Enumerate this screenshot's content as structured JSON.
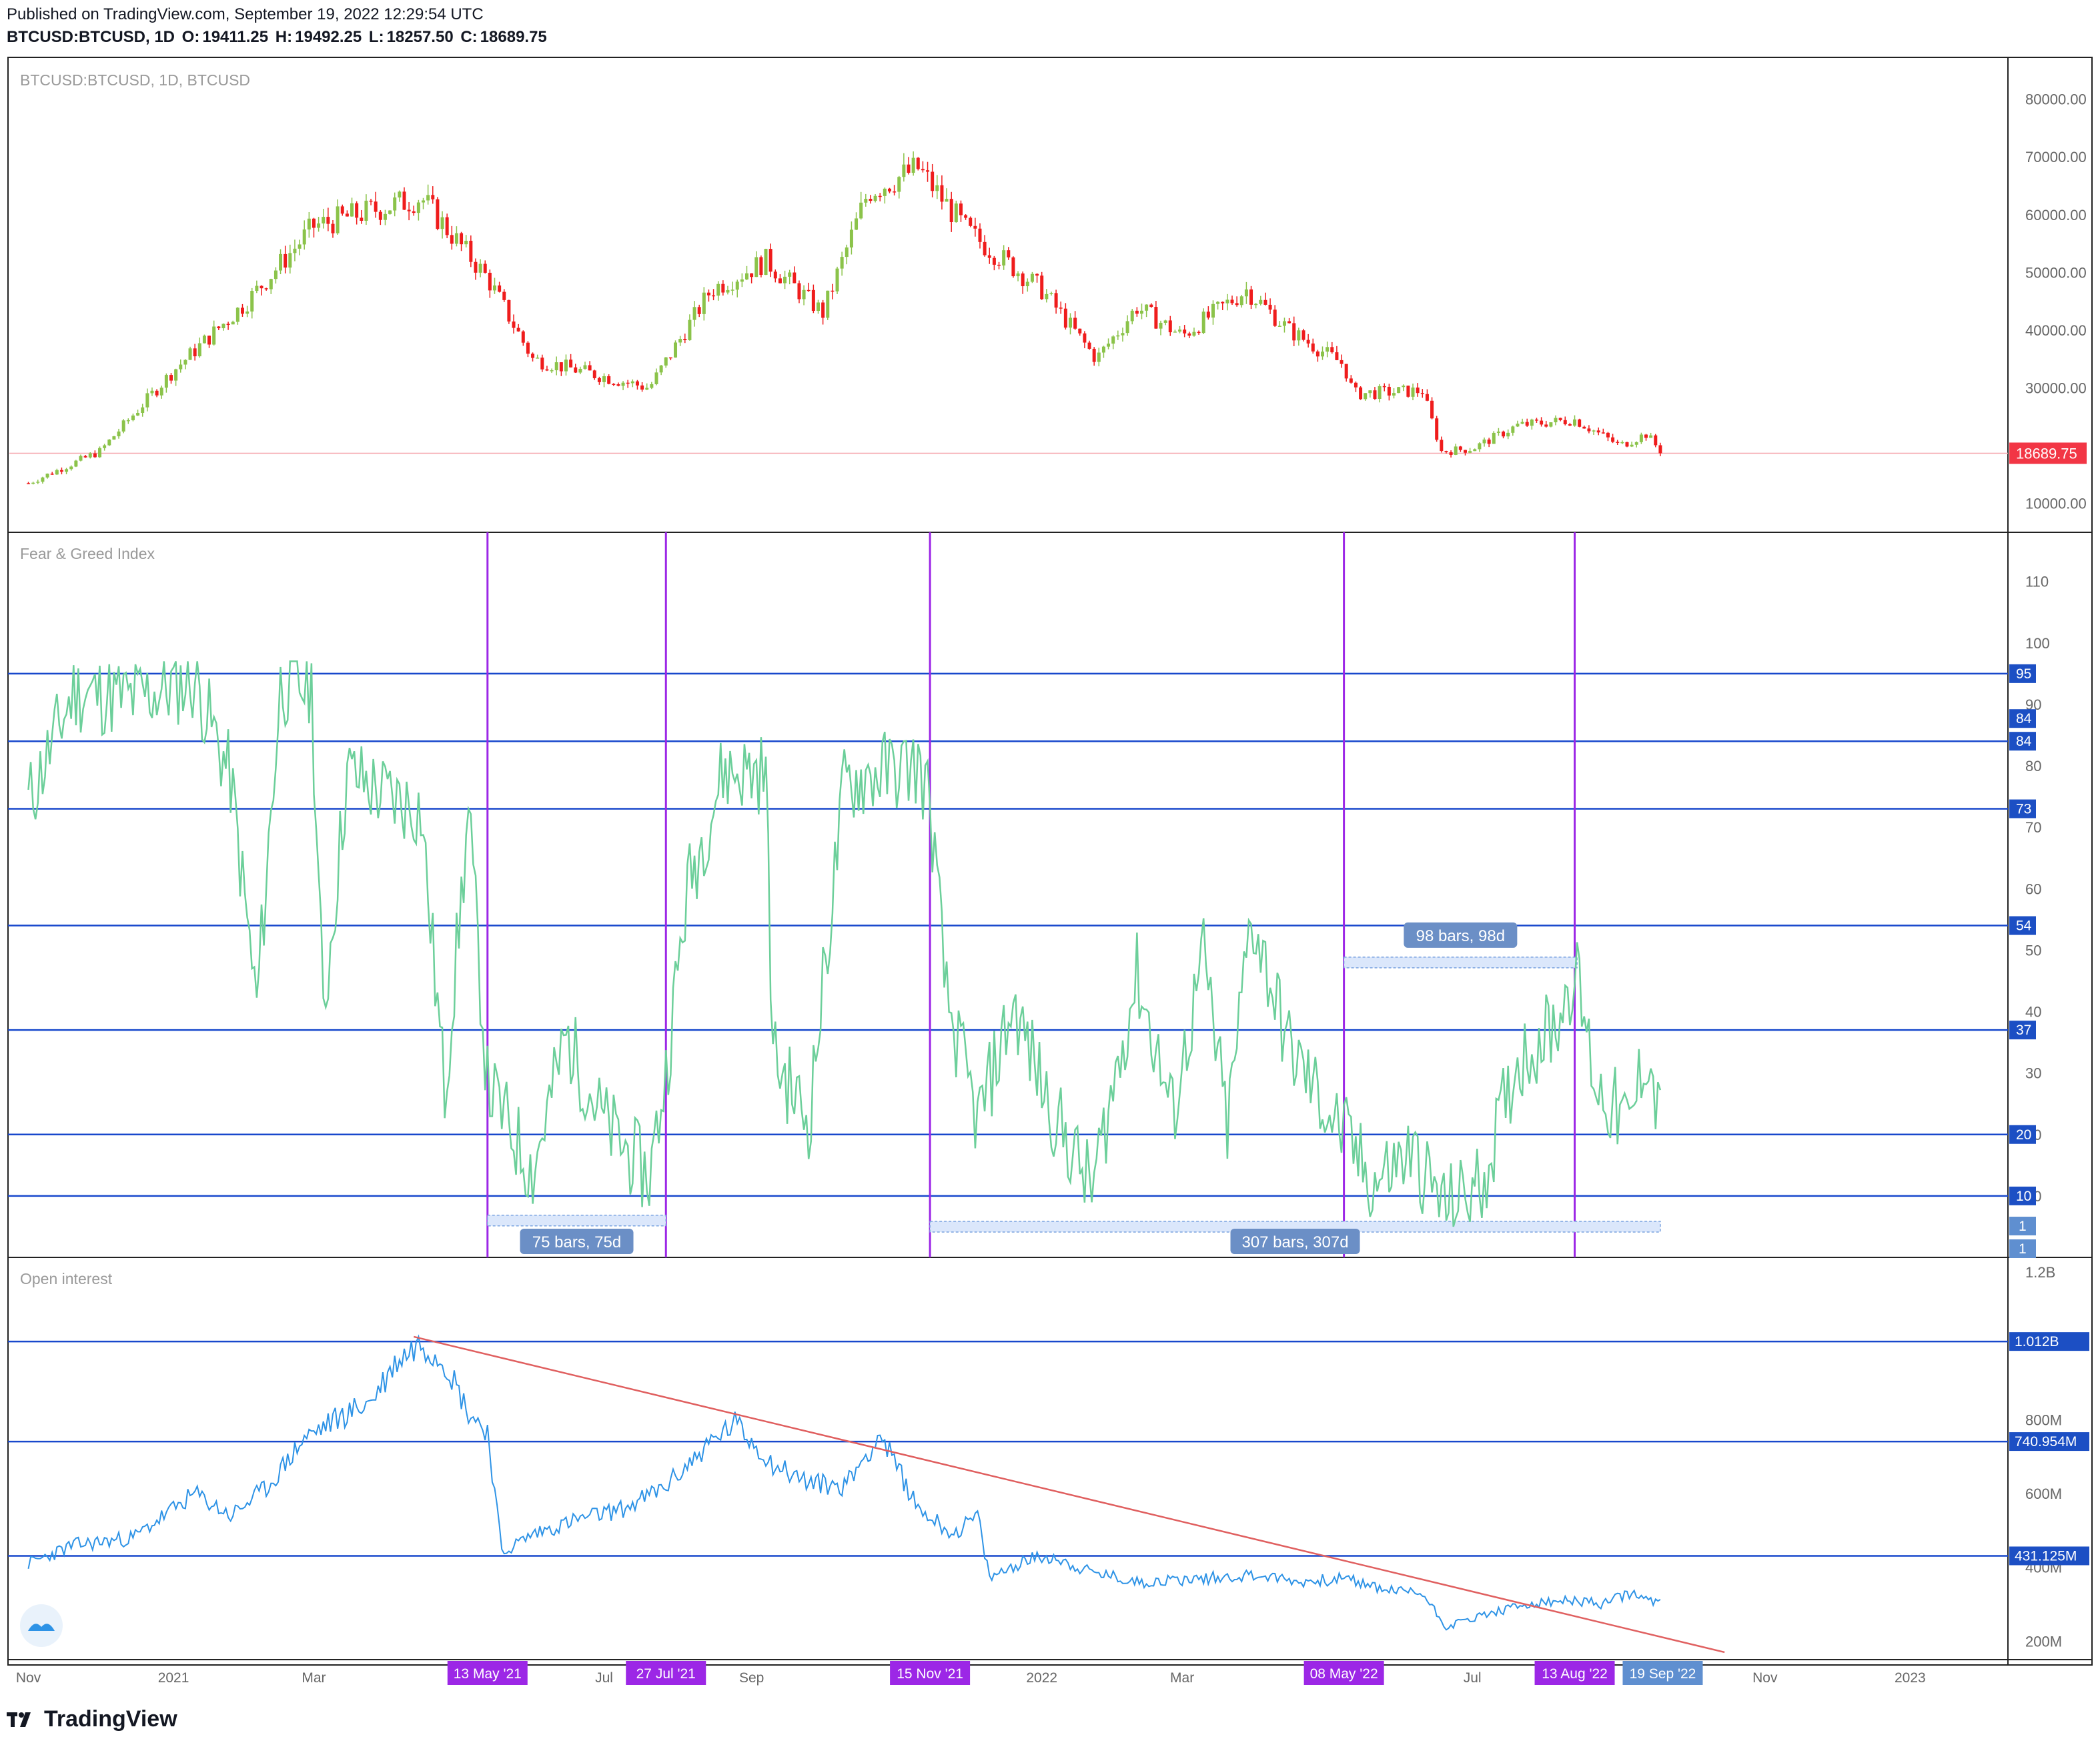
{
  "header": {
    "published": "Published on TradingView.com, September 19, 2022 12:29:54 UTC",
    "symbol": "BTCUSD:BTCUSD, 1D",
    "o_label": "O:",
    "o_value": "19411.25",
    "h_label": "H:",
    "h_value": "19492.25",
    "l_label": "L:",
    "l_value": "18257.50",
    "c_label": "C:",
    "c_value": "18689.75"
  },
  "footer": {
    "brand": "TradingView"
  },
  "colors": {
    "up": "#53b987",
    "down": "#eb4d5c",
    "candle_up": "#8bc34a",
    "candle_down": "#ef1c1c",
    "hline": "#1848cc",
    "vline": "#9c27e6",
    "fg_line": "#6ccf9a",
    "oi_line": "#2e93e6",
    "trend": "#e06060",
    "price_tag": "#f23645"
  },
  "chart_data": [
    {
      "type": "candlestick",
      "pane_title": "BTCUSD:BTCUSD, 1D, BTCUSD",
      "y_ticks": [
        "80000.00",
        "70000.00",
        "60000.00",
        "50000.00",
        "40000.00",
        "30000.00",
        "10000.00"
      ],
      "ylim": [
        5000,
        87000
      ],
      "last_price_label": "18689.75",
      "last_price": 18689.75,
      "monthly_closes": [
        {
          "date": "2020-11-01",
          "v": 13500
        },
        {
          "date": "2020-12-01",
          "v": 19000
        },
        {
          "date": "2021-01-01",
          "v": 33000
        },
        {
          "date": "2021-02-01",
          "v": 45000
        },
        {
          "date": "2021-03-01",
          "v": 58000
        },
        {
          "date": "2021-04-15",
          "v": 63000
        },
        {
          "date": "2021-05-13",
          "v": 49000
        },
        {
          "date": "2021-06-01",
          "v": 35000
        },
        {
          "date": "2021-07-20",
          "v": 30000
        },
        {
          "date": "2021-08-15",
          "v": 47000
        },
        {
          "date": "2021-09-07",
          "v": 52000
        },
        {
          "date": "2021-10-01",
          "v": 43000
        },
        {
          "date": "2021-10-20",
          "v": 64000
        },
        {
          "date": "2021-11-10",
          "v": 68000
        },
        {
          "date": "2021-12-01",
          "v": 57000
        },
        {
          "date": "2022-01-01",
          "v": 47000
        },
        {
          "date": "2022-01-24",
          "v": 35000
        },
        {
          "date": "2022-02-10",
          "v": 44000
        },
        {
          "date": "2022-03-01",
          "v": 39000
        },
        {
          "date": "2022-03-28",
          "v": 47000
        },
        {
          "date": "2022-04-15",
          "v": 40000
        },
        {
          "date": "2022-05-08",
          "v": 34000
        },
        {
          "date": "2022-05-12",
          "v": 29000
        },
        {
          "date": "2022-06-10",
          "v": 29500
        },
        {
          "date": "2022-06-18",
          "v": 19000
        },
        {
          "date": "2022-07-01",
          "v": 19500
        },
        {
          "date": "2022-07-20",
          "v": 23500
        },
        {
          "date": "2022-08-13",
          "v": 24500
        },
        {
          "date": "2022-09-01",
          "v": 20000
        },
        {
          "date": "2022-09-12",
          "v": 22000
        },
        {
          "date": "2022-09-19",
          "v": 18690
        }
      ]
    },
    {
      "type": "line",
      "pane_title": "Fear & Greed Index",
      "y_ticks": [
        "110",
        "100",
        "90",
        "80",
        "70",
        "60",
        "50",
        "40",
        "30",
        "20",
        "10"
      ],
      "ylim": [
        0,
        118
      ],
      "hlines": [
        95,
        84,
        84,
        73,
        54,
        37,
        20,
        10
      ],
      "hline_labels": [
        "95",
        "84",
        "84",
        "73",
        "54",
        "37",
        "20",
        "10"
      ],
      "extra_tags": [
        "1",
        "1"
      ],
      "vlines": [
        "2021-05-13",
        "2021-07-27",
        "2021-11-15",
        "2022-05-08",
        "2022-08-13"
      ],
      "ranges": [
        {
          "label": "75 bars, 75d",
          "from": "2021-05-13",
          "to": "2021-07-27",
          "level": 6
        },
        {
          "label": "98 bars, 98d",
          "from": "2022-05-08",
          "to": "2022-08-14",
          "level": 48
        },
        {
          "label": "307 bars, 307d",
          "from": "2021-11-15",
          "to": "2022-09-18",
          "level": 5
        }
      ],
      "points": [
        {
          "date": "2020-11-01",
          "v": 74
        },
        {
          "date": "2020-11-20",
          "v": 92
        },
        {
          "date": "2020-12-15",
          "v": 91
        },
        {
          "date": "2021-01-10",
          "v": 94
        },
        {
          "date": "2021-01-25",
          "v": 78
        },
        {
          "date": "2021-02-05",
          "v": 41
        },
        {
          "date": "2021-02-15",
          "v": 93
        },
        {
          "date": "2021-02-28",
          "v": 93
        },
        {
          "date": "2021-03-05",
          "v": 39
        },
        {
          "date": "2021-03-15",
          "v": 79
        },
        {
          "date": "2021-04-01",
          "v": 75
        },
        {
          "date": "2021-04-15",
          "v": 73
        },
        {
          "date": "2021-04-25",
          "v": 27
        },
        {
          "date": "2021-05-05",
          "v": 72
        },
        {
          "date": "2021-05-13",
          "v": 28
        },
        {
          "date": "2021-06-01",
          "v": 14
        },
        {
          "date": "2021-06-15",
          "v": 36
        },
        {
          "date": "2021-07-01",
          "v": 22
        },
        {
          "date": "2021-07-20",
          "v": 13
        },
        {
          "date": "2021-07-27",
          "v": 30
        },
        {
          "date": "2021-08-05",
          "v": 60
        },
        {
          "date": "2021-08-20",
          "v": 79
        },
        {
          "date": "2021-09-07",
          "v": 79
        },
        {
          "date": "2021-09-10",
          "v": 33
        },
        {
          "date": "2021-09-25",
          "v": 22
        },
        {
          "date": "2021-10-10",
          "v": 77
        },
        {
          "date": "2021-10-25",
          "v": 79
        },
        {
          "date": "2021-11-10",
          "v": 80
        },
        {
          "date": "2021-11-15",
          "v": 74
        },
        {
          "date": "2021-11-22",
          "v": 42
        },
        {
          "date": "2021-12-05",
          "v": 22
        },
        {
          "date": "2021-12-20",
          "v": 41
        },
        {
          "date": "2022-01-05",
          "v": 24
        },
        {
          "date": "2022-01-22",
          "v": 11
        },
        {
          "date": "2022-02-10",
          "v": 46
        },
        {
          "date": "2022-02-25",
          "v": 23
        },
        {
          "date": "2022-03-10",
          "v": 49
        },
        {
          "date": "2022-03-20",
          "v": 21
        },
        {
          "date": "2022-03-30",
          "v": 56
        },
        {
          "date": "2022-04-15",
          "v": 34
        },
        {
          "date": "2022-05-01",
          "v": 24
        },
        {
          "date": "2022-05-08",
          "v": 20
        },
        {
          "date": "2022-05-20",
          "v": 12
        },
        {
          "date": "2022-06-05",
          "v": 17
        },
        {
          "date": "2022-06-20",
          "v": 8
        },
        {
          "date": "2022-07-05",
          "v": 12
        },
        {
          "date": "2022-07-20",
          "v": 32
        },
        {
          "date": "2022-08-05",
          "v": 38
        },
        {
          "date": "2022-08-13",
          "v": 47
        },
        {
          "date": "2022-08-22",
          "v": 28
        },
        {
          "date": "2022-09-05",
          "v": 21
        },
        {
          "date": "2022-09-12",
          "v": 34
        },
        {
          "date": "2022-09-18",
          "v": 22
        }
      ]
    },
    {
      "type": "line",
      "pane_title": "Open interest",
      "y_ticks": [
        "1.2B",
        "800M",
        "600M",
        "400M",
        "200M"
      ],
      "ylim": [
        150,
        1240
      ],
      "hlines": [
        1012,
        740.954,
        431.125
      ],
      "hline_labels": [
        "1.012B",
        "740.954M",
        "431.125M"
      ],
      "trendline": [
        {
          "date": "2021-04-12",
          "v": 1025
        },
        {
          "date": "2022-10-15",
          "v": 170
        }
      ],
      "points": [
        {
          "date": "2020-11-01",
          "v": 410
        },
        {
          "date": "2020-11-20",
          "v": 460
        },
        {
          "date": "2020-12-15",
          "v": 480
        },
        {
          "date": "2021-01-10",
          "v": 600
        },
        {
          "date": "2021-01-25",
          "v": 540
        },
        {
          "date": "2021-02-10",
          "v": 620
        },
        {
          "date": "2021-02-25",
          "v": 750
        },
        {
          "date": "2021-03-10",
          "v": 800
        },
        {
          "date": "2021-03-25",
          "v": 850
        },
        {
          "date": "2021-04-05",
          "v": 960
        },
        {
          "date": "2021-04-15",
          "v": 1010
        },
        {
          "date": "2021-04-25",
          "v": 960
        },
        {
          "date": "2021-05-05",
          "v": 820
        },
        {
          "date": "2021-05-13",
          "v": 770
        },
        {
          "date": "2021-05-19",
          "v": 440
        },
        {
          "date": "2021-06-01",
          "v": 490
        },
        {
          "date": "2021-06-20",
          "v": 530
        },
        {
          "date": "2021-07-10",
          "v": 560
        },
        {
          "date": "2021-07-27",
          "v": 620
        },
        {
          "date": "2021-08-15",
          "v": 740
        },
        {
          "date": "2021-08-25",
          "v": 790
        },
        {
          "date": "2021-09-10",
          "v": 680
        },
        {
          "date": "2021-09-25",
          "v": 630
        },
        {
          "date": "2021-10-10",
          "v": 620
        },
        {
          "date": "2021-10-25",
          "v": 760
        },
        {
          "date": "2021-11-10",
          "v": 560
        },
        {
          "date": "2021-11-25",
          "v": 490
        },
        {
          "date": "2021-12-05",
          "v": 540
        },
        {
          "date": "2021-12-10",
          "v": 370
        },
        {
          "date": "2021-12-25",
          "v": 420
        },
        {
          "date": "2022-01-05",
          "v": 430
        },
        {
          "date": "2022-01-20",
          "v": 390
        },
        {
          "date": "2022-02-10",
          "v": 360
        },
        {
          "date": "2022-03-10",
          "v": 370
        },
        {
          "date": "2022-04-01",
          "v": 380
        },
        {
          "date": "2022-04-20",
          "v": 360
        },
        {
          "date": "2022-05-08",
          "v": 370
        },
        {
          "date": "2022-05-25",
          "v": 340
        },
        {
          "date": "2022-06-10",
          "v": 330
        },
        {
          "date": "2022-06-20",
          "v": 240
        },
        {
          "date": "2022-07-05",
          "v": 270
        },
        {
          "date": "2022-07-25",
          "v": 300
        },
        {
          "date": "2022-08-13",
          "v": 310
        },
        {
          "date": "2022-08-25",
          "v": 300
        },
        {
          "date": "2022-09-05",
          "v": 330
        },
        {
          "date": "2022-09-18",
          "v": 300
        }
      ]
    }
  ],
  "x_axis": {
    "ticks": [
      {
        "label": "Nov",
        "date": "2020-11-01"
      },
      {
        "label": "2021",
        "date": "2021-01-01"
      },
      {
        "label": "Mar",
        "date": "2021-03-01"
      },
      {
        "label": "Jul",
        "date": "2021-07-01"
      },
      {
        "label": "Sep",
        "date": "2021-09-01"
      },
      {
        "label": "N",
        "date": "2021-11-01"
      },
      {
        "label": "2022",
        "date": "2022-01-01"
      },
      {
        "label": "Mar",
        "date": "2022-03-01"
      },
      {
        "label": "Jul",
        "date": "2022-07-01"
      },
      {
        "label": "Nov",
        "date": "2022-11-01"
      },
      {
        "label": "2023",
        "date": "2023-01-01"
      }
    ],
    "marked_dates": [
      {
        "label": "13 May '21",
        "date": "2021-05-13"
      },
      {
        "label": "27 Jul '21",
        "date": "2021-07-27"
      },
      {
        "label": "15 Nov '21",
        "date": "2021-11-15"
      },
      {
        "label": "08 May '22",
        "date": "2022-05-08"
      },
      {
        "label": "13 Aug '22",
        "date": "2022-08-13"
      }
    ],
    "current_date_label": "19 Sep '22",
    "current_date": "2022-09-19"
  }
}
